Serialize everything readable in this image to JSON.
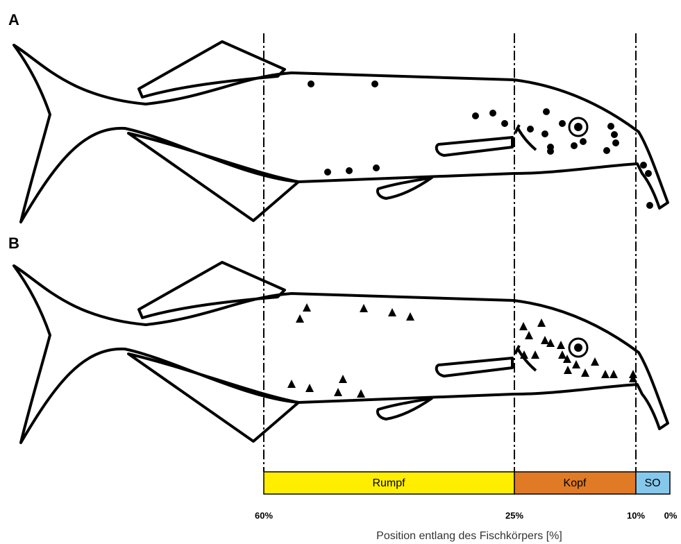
{
  "panels": [
    {
      "label": "A"
    },
    {
      "label": "B"
    }
  ],
  "regions": [
    {
      "label": "Rumpf"
    },
    {
      "label": "Kopf"
    },
    {
      "label": "SO"
    }
  ],
  "axis": {
    "ticks": [
      "60%",
      "25%",
      "10%",
      "0%"
    ],
    "title": "Position entlang des Fischkörpers [%]"
  }
}
